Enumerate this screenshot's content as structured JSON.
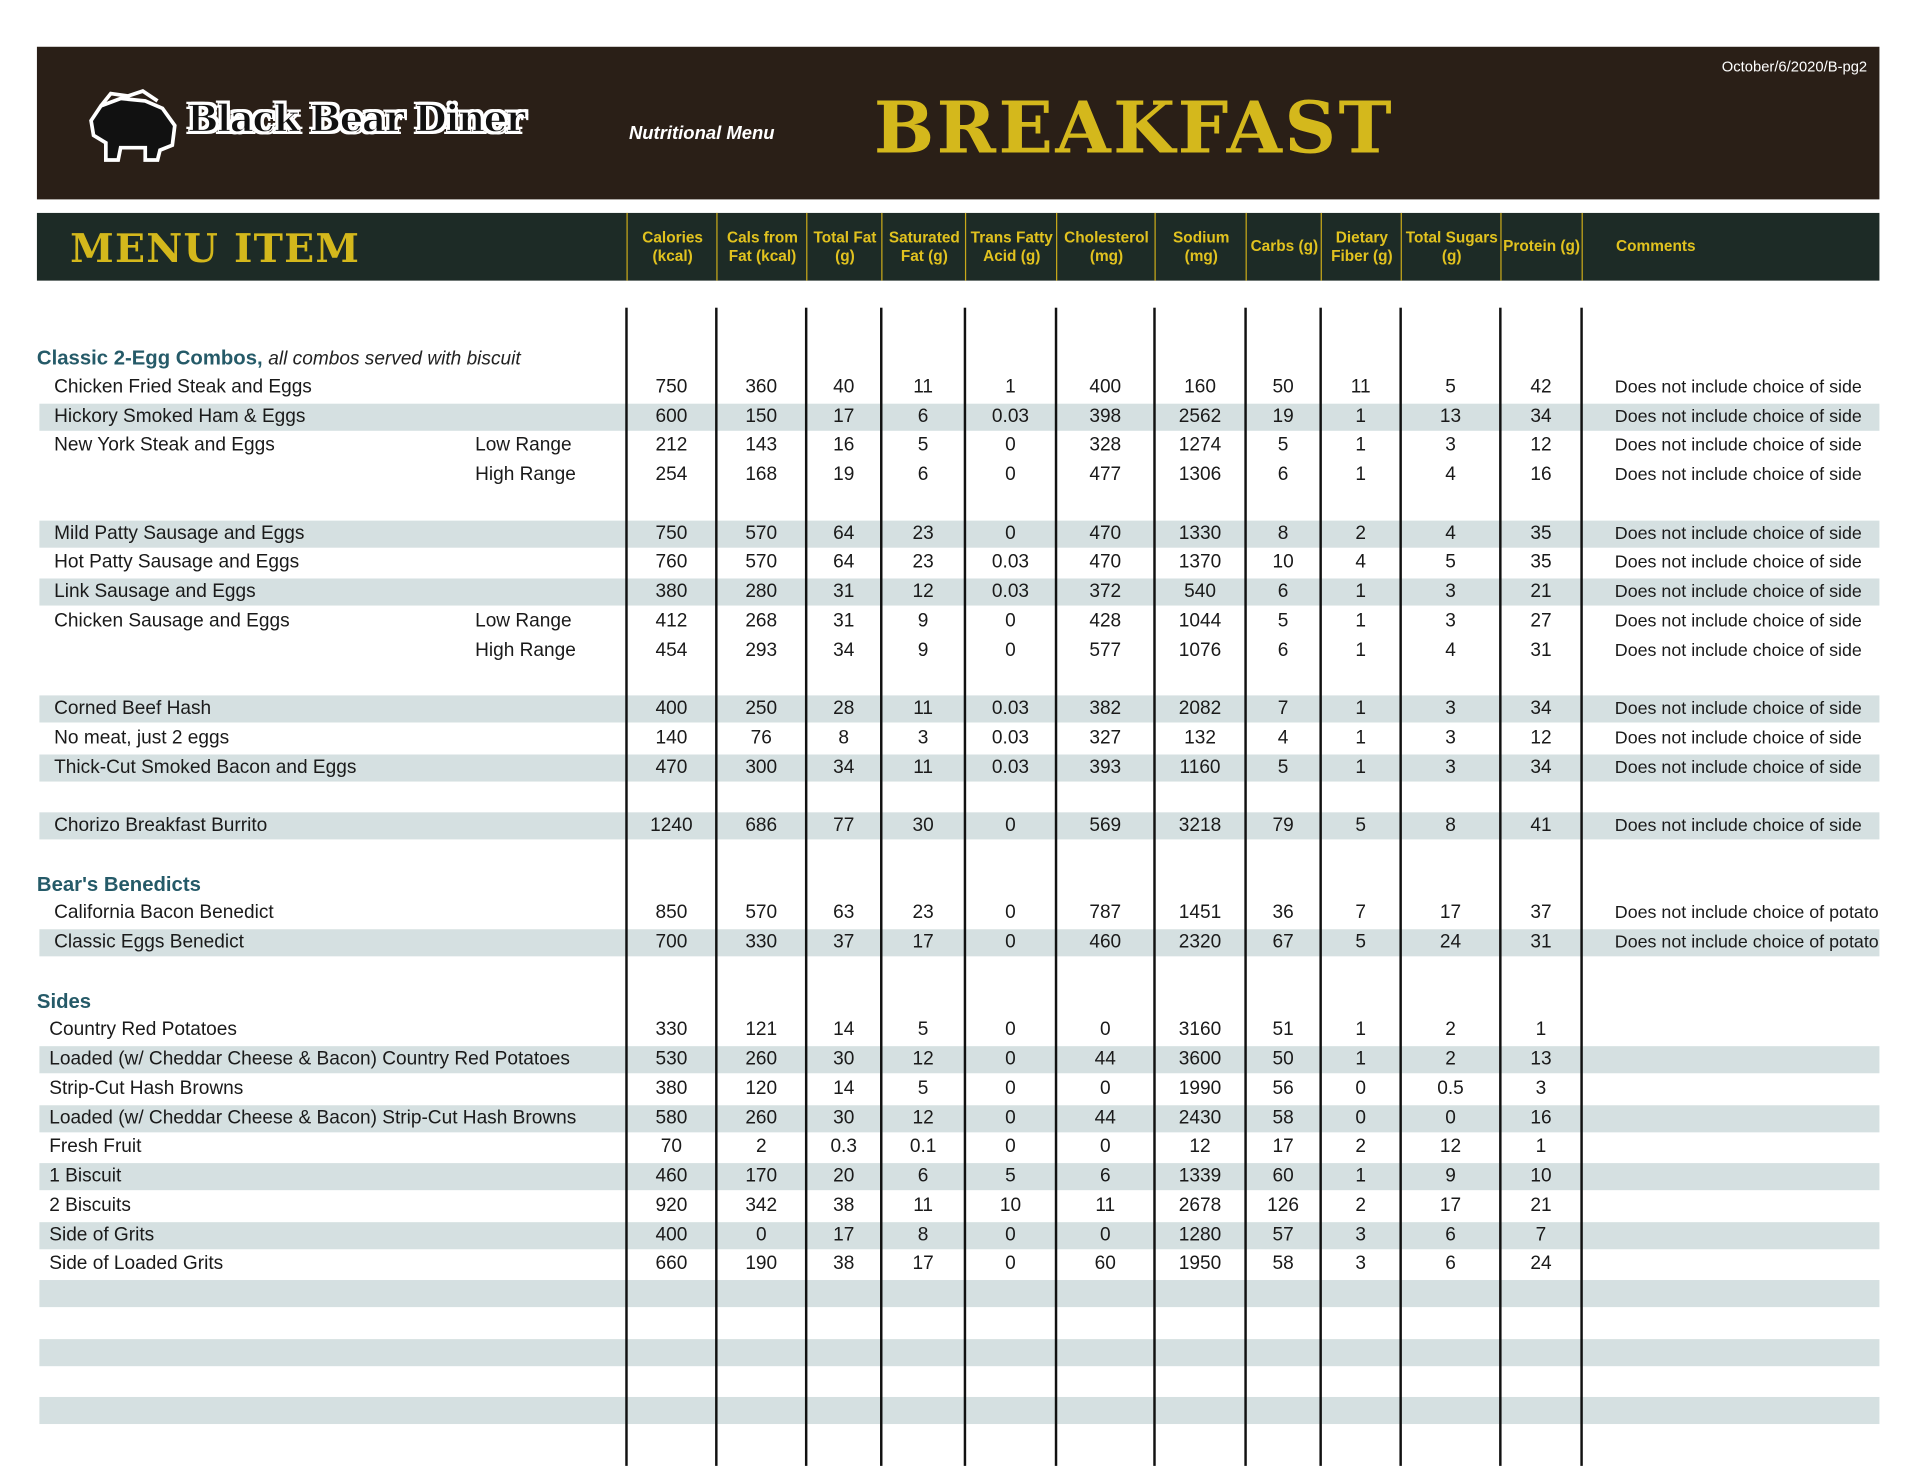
{
  "header": {
    "date_code": "October/6/2020/B-pg2",
    "logo_text": "Black Bear Diner",
    "subtitle": "Nutritional Menu",
    "title": "BREAKFAST"
  },
  "colors": {
    "banner": "#2a1f17",
    "column_bar": "#1d2b26",
    "gold": "#d4b81c",
    "section": "#255a68",
    "stripe": "#d5e0e1"
  },
  "columns": {
    "menu_item": "MENU ITEM",
    "headers": [
      "Calories (kcal)",
      "Cals from Fat (kcal)",
      "Total Fat (g)",
      "Saturated Fat (g)",
      "Trans Fatty Acid (g)",
      "Cholesterol (mg)",
      "Sodium (mg)",
      "Carbs (g)",
      "Dietary Fiber (g)",
      "Total Sugars (g)",
      "Protein (g)"
    ],
    "comments": "Comments"
  },
  "rows": [
    {
      "type": "section",
      "title": "Classic 2-Egg Combos,",
      "note": "all combos served with biscuit"
    },
    {
      "type": "item",
      "name": "Chicken Fried Steak and Eggs",
      "values": [
        "750",
        "360",
        "40",
        "11",
        "1",
        "400",
        "160",
        "50",
        "11",
        "5",
        "42"
      ],
      "comment": "Does not include choice of side"
    },
    {
      "type": "item",
      "name": "Hickory Smoked Ham & Eggs",
      "values": [
        "600",
        "150",
        "17",
        "6",
        "0.03",
        "398",
        "2562",
        "19",
        "1",
        "13",
        "34"
      ],
      "comment": "Does not include choice of side"
    },
    {
      "type": "item",
      "name": "New York Steak and Eggs",
      "range": "Low Range",
      "values": [
        "212",
        "143",
        "16",
        "5",
        "0",
        "328",
        "1274",
        "5",
        "1",
        "3",
        "12"
      ],
      "comment": "Does not include choice of side"
    },
    {
      "type": "item",
      "name": "",
      "range": "High Range",
      "values": [
        "254",
        "168",
        "19",
        "6",
        "0",
        "477",
        "1306",
        "6",
        "1",
        "4",
        "16"
      ],
      "comment": "Does not include choice of side"
    },
    {
      "type": "blank"
    },
    {
      "type": "item",
      "name": "Mild Patty Sausage and Eggs",
      "values": [
        "750",
        "570",
        "64",
        "23",
        "0",
        "470",
        "1330",
        "8",
        "2",
        "4",
        "35"
      ],
      "comment": "Does not include choice of side"
    },
    {
      "type": "item",
      "name": "Hot Patty Sausage and Eggs",
      "values": [
        "760",
        "570",
        "64",
        "23",
        "0.03",
        "470",
        "1370",
        "10",
        "4",
        "5",
        "35"
      ],
      "comment": "Does not include choice of side"
    },
    {
      "type": "item",
      "name": "Link Sausage and Eggs",
      "values": [
        "380",
        "280",
        "31",
        "12",
        "0.03",
        "372",
        "540",
        "6",
        "1",
        "3",
        "21"
      ],
      "comment": "Does not include choice of side"
    },
    {
      "type": "item",
      "name": "Chicken Sausage and Eggs",
      "range": "Low Range",
      "values": [
        "412",
        "268",
        "31",
        "9",
        "0",
        "428",
        "1044",
        "5",
        "1",
        "3",
        "27"
      ],
      "comment": "Does not include choice of side"
    },
    {
      "type": "item",
      "name": "",
      "range": "High Range",
      "values": [
        "454",
        "293",
        "34",
        "9",
        "0",
        "577",
        "1076",
        "6",
        "1",
        "4",
        "31"
      ],
      "comment": "Does not include choice of side"
    },
    {
      "type": "blank"
    },
    {
      "type": "item",
      "name": "Corned Beef Hash",
      "values": [
        "400",
        "250",
        "28",
        "11",
        "0.03",
        "382",
        "2082",
        "7",
        "1",
        "3",
        "34"
      ],
      "comment": "Does not include choice of side"
    },
    {
      "type": "item",
      "name": "No meat, just 2 eggs",
      "values": [
        "140",
        "76",
        "8",
        "3",
        "0.03",
        "327",
        "132",
        "4",
        "1",
        "3",
        "12"
      ],
      "comment": "Does not include choice of side"
    },
    {
      "type": "item",
      "name": "Thick-Cut Smoked Bacon and Eggs",
      "values": [
        "470",
        "300",
        "34",
        "11",
        "0.03",
        "393",
        "1160",
        "5",
        "1",
        "3",
        "34"
      ],
      "comment": "Does not include choice of side"
    },
    {
      "type": "blank"
    },
    {
      "type": "item",
      "name": "Chorizo Breakfast Burrito",
      "values": [
        "1240",
        "686",
        "77",
        "30",
        "0",
        "569",
        "3218",
        "79",
        "5",
        "8",
        "41"
      ],
      "comment": "Does not include choice of side"
    },
    {
      "type": "blank"
    },
    {
      "type": "section",
      "title": "Bear's Benedicts",
      "note": ""
    },
    {
      "type": "item",
      "name": "California Bacon Benedict",
      "values": [
        "850",
        "570",
        "63",
        "23",
        "0",
        "787",
        "1451",
        "36",
        "7",
        "17",
        "37"
      ],
      "comment": "Does not include choice of potato"
    },
    {
      "type": "item",
      "name": "Classic Eggs Benedict",
      "values": [
        "700",
        "330",
        "37",
        "17",
        "0",
        "460",
        "2320",
        "67",
        "5",
        "24",
        "31"
      ],
      "comment": "Does not include choice of potato"
    },
    {
      "type": "blank"
    },
    {
      "type": "section",
      "title": "Sides",
      "note": ""
    },
    {
      "type": "item",
      "name": "Country Red Potatoes",
      "values": [
        "330",
        "121",
        "14",
        "5",
        "0",
        "0",
        "3160",
        "51",
        "1",
        "2",
        "1"
      ],
      "comment": ""
    },
    {
      "type": "item",
      "name": "Loaded (w/ Cheddar Cheese & Bacon) Country Red Potatoes",
      "values": [
        "530",
        "260",
        "30",
        "12",
        "0",
        "44",
        "3600",
        "50",
        "1",
        "2",
        "13"
      ],
      "comment": ""
    },
    {
      "type": "item",
      "name": "Strip-Cut Hash Browns",
      "values": [
        "380",
        "120",
        "14",
        "5",
        "0",
        "0",
        "1990",
        "56",
        "0",
        "0.5",
        "3"
      ],
      "comment": ""
    },
    {
      "type": "item",
      "name": "Loaded (w/ Cheddar Cheese & Bacon) Strip-Cut Hash Browns",
      "values": [
        "580",
        "260",
        "30",
        "12",
        "0",
        "44",
        "2430",
        "58",
        "0",
        "0",
        "16"
      ],
      "comment": ""
    },
    {
      "type": "item",
      "name": "Fresh Fruit",
      "values": [
        "70",
        "2",
        "0.3",
        "0.1",
        "0",
        "0",
        "12",
        "17",
        "2",
        "12",
        "1"
      ],
      "comment": ""
    },
    {
      "type": "item",
      "name": "1 Biscuit",
      "values": [
        "460",
        "170",
        "20",
        "6",
        "5",
        "6",
        "1339",
        "60",
        "1",
        "9",
        "10"
      ],
      "comment": ""
    },
    {
      "type": "item",
      "name": "2 Biscuits",
      "values": [
        "920",
        "342",
        "38",
        "11",
        "10",
        "11",
        "2678",
        "126",
        "2",
        "17",
        "21"
      ],
      "comment": ""
    },
    {
      "type": "item",
      "name": "Side of Grits",
      "values": [
        "400",
        "0",
        "17",
        "8",
        "0",
        "0",
        "1280",
        "57",
        "3",
        "6",
        "7"
      ],
      "comment": ""
    },
    {
      "type": "item",
      "name": "Side of Loaded Grits",
      "values": [
        "660",
        "190",
        "38",
        "17",
        "0",
        "60",
        "1950",
        "58",
        "3",
        "6",
        "24"
      ],
      "comment": ""
    },
    {
      "type": "blank"
    },
    {
      "type": "blank"
    },
    {
      "type": "blank"
    },
    {
      "type": "blank"
    },
    {
      "type": "blank"
    }
  ]
}
